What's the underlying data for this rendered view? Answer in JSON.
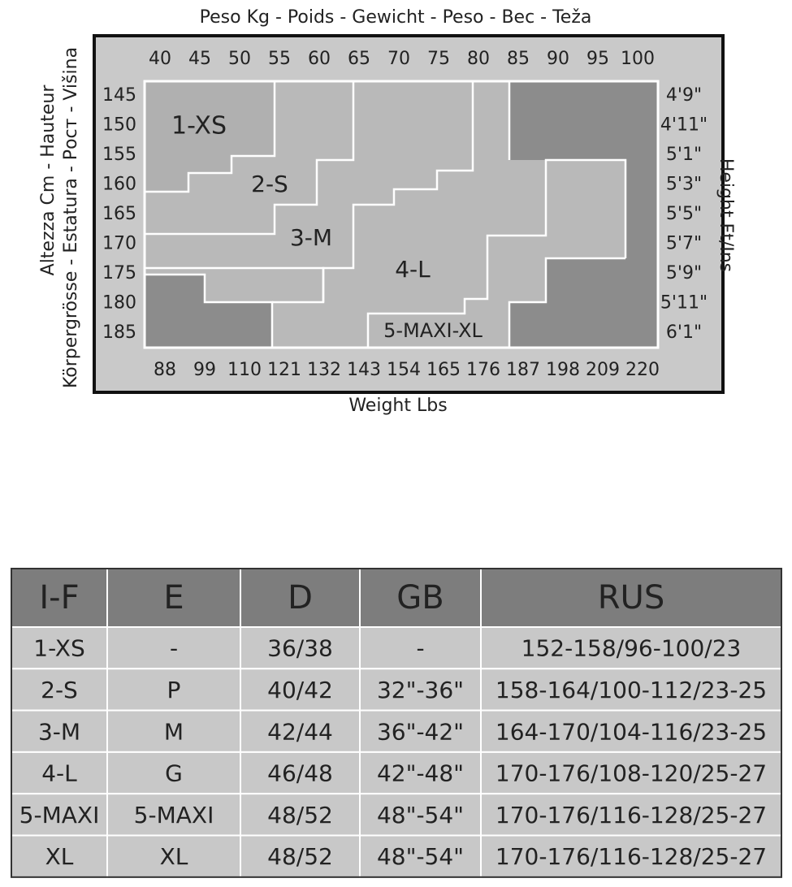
{
  "chart": {
    "title": "Peso Kg - Poids - Gewicht - Peso - Bec - Teža",
    "left_label_1": "Altezza Cm - Hauteur",
    "left_label_2": "Körpergrösse - Estatura - Рост - Višina",
    "right_label": "Height Ft/Ins",
    "bottom_label": "Weight Lbs",
    "kg": [
      "40",
      "45",
      "50",
      "55",
      "60",
      "65",
      "70",
      "75",
      "80",
      "85",
      "90",
      "95",
      "100"
    ],
    "lbs": [
      "88",
      "99",
      "110",
      "121",
      "132",
      "143",
      "154",
      "165",
      "176",
      "187",
      "198",
      "209",
      "220"
    ],
    "cm": [
      "145",
      "150",
      "155",
      "160",
      "165",
      "170",
      "175",
      "180",
      "185"
    ],
    "ft": [
      "4'9\"",
      "4'11\"",
      "5'1\"",
      "5'3\"",
      "5'5\"",
      "5'7\"",
      "5'9\"",
      "5'11\"",
      "6'1\""
    ],
    "regions": [
      "1-XS",
      "2-S",
      "3-M",
      "4-L",
      "5-MAXI-XL"
    ]
  },
  "table": {
    "header": [
      "I-F",
      "E",
      "D",
      "GB",
      "RUS"
    ],
    "rows": [
      [
        "1-XS",
        "-",
        "36/38",
        "-",
        "152-158/96-100/23"
      ],
      [
        "2-S",
        "P",
        "40/42",
        "32\"-36\"",
        "158-164/100-112/23-25"
      ],
      [
        "3-M",
        "M",
        "42/44",
        "36\"-42\"",
        "164-170/104-116/23-25"
      ],
      [
        "4-L",
        "G",
        "46/48",
        "42\"-48\"",
        "170-176/108-120/25-27"
      ],
      [
        "5-MAXI",
        "5-MAXI",
        "48/52",
        "48\"-54\"",
        "170-176/116-128/25-27"
      ],
      [
        "XL",
        "XL",
        "48/52",
        "48\"-54\"",
        "170-176/116-128/25-27"
      ]
    ]
  }
}
